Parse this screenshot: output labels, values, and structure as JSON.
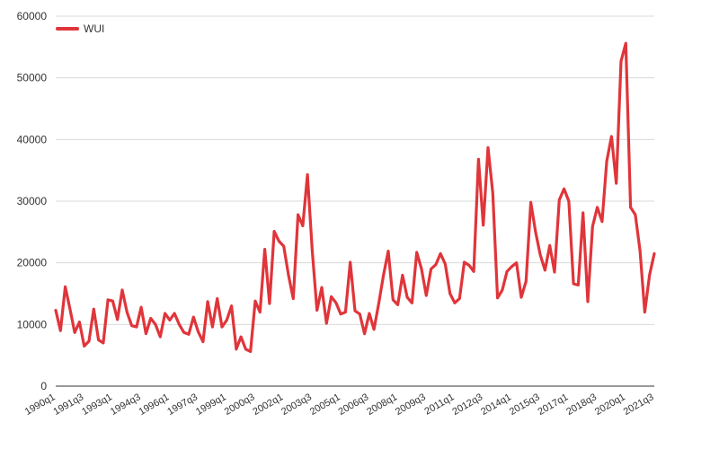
{
  "chart_data": {
    "type": "line",
    "title": "",
    "xlabel": "",
    "ylabel": "",
    "ylim": [
      0,
      60000
    ],
    "y_ticks": [
      0,
      10000,
      20000,
      30000,
      40000,
      50000,
      60000
    ],
    "grid": true,
    "legend_position": "top-left",
    "x_tick_labels": [
      "1990q1",
      "1991q3",
      "1993q1",
      "1994q3",
      "1996q1",
      "1997q3",
      "1999q1",
      "2000q3",
      "2002q1",
      "2003q3",
      "2005q1",
      "2006q3",
      "2008q1",
      "2009q3",
      "2011q1",
      "2012q3",
      "2014q1",
      "2015q3",
      "2017q1",
      "2018q3",
      "2020q1",
      "2021q3"
    ],
    "series": [
      {
        "name": "WUI",
        "color": "#e0353a",
        "values": [
          12300,
          9000,
          16100,
          12500,
          8700,
          10400,
          6500,
          7300,
          12500,
          7500,
          7000,
          14000,
          13800,
          10800,
          15600,
          12000,
          9800,
          9600,
          12800,
          8500,
          11000,
          10000,
          8000,
          11800,
          10700,
          11800,
          10000,
          8700,
          8400,
          11200,
          8800,
          7200,
          13700,
          9600,
          14200,
          9600,
          10700,
          13000,
          6000,
          8000,
          6000,
          5600,
          13800,
          12000,
          22200,
          13400,
          25100,
          23500,
          22700,
          18000,
          14200,
          27800,
          26000,
          34300,
          22000,
          12300,
          16000,
          10200,
          14500,
          13500,
          11700,
          12000,
          20100,
          12200,
          11700,
          8500,
          11800,
          9200,
          13400,
          18000,
          21900,
          14000,
          13200,
          18000,
          14400,
          13500,
          21700,
          19000,
          14700,
          19000,
          19700,
          21500,
          19800,
          15000,
          13500,
          14200,
          20100,
          19600,
          18600,
          36800,
          26100,
          38700,
          31300,
          14300,
          15600,
          18600,
          19400,
          20000,
          14400,
          17000,
          29800,
          25000,
          21300,
          18800,
          22800,
          18500,
          30200,
          32000,
          30000,
          16600,
          16400,
          28100,
          13700,
          25900,
          29000,
          26700,
          36500,
          40500,
          32900,
          52700,
          55600,
          29000,
          27800,
          22000,
          12000,
          18000,
          21500
        ]
      }
    ]
  }
}
